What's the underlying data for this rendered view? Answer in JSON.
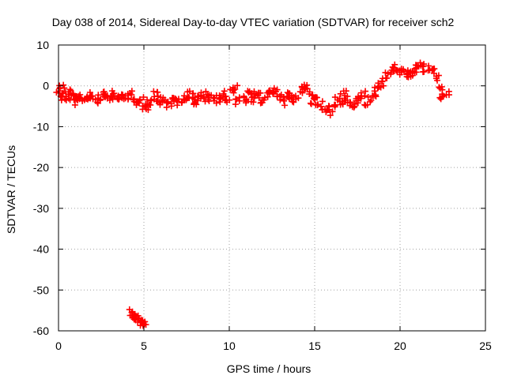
{
  "chart_data": {
    "type": "scatter",
    "title": "Day 038 of 2014, Sidereal Day-to-day VTEC variation (SDTVAR) for receiver sch2",
    "xlabel": "GPS time / hours",
    "ylabel": "SDTVAR / TECUs",
    "xlim": [
      0,
      25
    ],
    "ylim": [
      -60,
      10
    ],
    "xticks": [
      0,
      5,
      10,
      15,
      20,
      25
    ],
    "yticks": [
      10,
      0,
      -10,
      -20,
      -30,
      -40,
      -50,
      -60
    ],
    "grid": true,
    "marker": "+",
    "series": [
      {
        "name": "SDTVAR",
        "color": "#ff0000",
        "x": [
          0.0,
          0.1,
          0.2,
          0.3,
          0.5,
          0.6,
          0.8,
          1.0,
          1.1,
          1.2,
          1.4,
          1.6,
          1.8,
          2.0,
          2.2,
          2.4,
          2.6,
          2.8,
          3.0,
          3.2,
          3.4,
          3.6,
          3.8,
          4.0,
          4.2,
          4.4,
          4.6,
          4.8,
          5.0,
          5.1,
          5.3,
          5.5,
          5.7,
          5.9,
          6.1,
          6.3,
          6.5,
          6.7,
          6.9,
          7.1,
          7.3,
          7.5,
          7.7,
          7.9,
          8.1,
          8.3,
          8.5,
          8.7,
          8.9,
          9.1,
          9.3,
          9.5,
          9.7,
          9.9,
          10.1,
          10.3,
          10.5,
          10.7,
          10.9,
          11.1,
          11.3,
          11.5,
          11.7,
          11.9,
          12.1,
          12.3,
          12.5,
          12.7,
          12.9,
          13.1,
          13.3,
          13.5,
          13.7,
          13.9,
          14.1,
          14.3,
          14.5,
          14.7,
          14.9,
          15.1,
          15.3,
          15.5,
          15.7,
          15.9,
          16.1,
          16.3,
          16.5,
          16.7,
          16.9,
          17.1,
          17.3,
          17.5,
          17.7,
          17.9,
          18.1,
          18.3,
          18.5,
          18.7,
          18.9,
          19.1,
          19.3,
          19.5,
          19.7,
          19.9,
          20.1,
          20.3,
          20.5,
          20.7,
          20.9,
          21.1,
          21.3,
          21.5,
          21.7,
          21.9,
          22.1,
          22.3,
          22.5,
          22.7,
          4.3,
          4.4,
          4.5,
          4.6,
          4.7,
          4.8,
          4.9,
          5.0
        ],
        "y": [
          -1.0,
          -3.0,
          0.0,
          -2.0,
          -3.5,
          -1.5,
          -2.5,
          -4.0,
          -3.0,
          -2.5,
          -3.0,
          -3.0,
          -2.5,
          -2.0,
          -3.5,
          -3.0,
          -2.0,
          -2.5,
          -3.0,
          -2.0,
          -3.0,
          -2.5,
          -2.5,
          -3.0,
          -2.0,
          -3.5,
          -4.0,
          -3.5,
          -4.5,
          -5.5,
          -4.0,
          -3.0,
          -2.0,
          -4.0,
          -3.5,
          -4.0,
          -4.5,
          -3.0,
          -3.5,
          -4.0,
          -3.0,
          -3.0,
          -2.0,
          -3.5,
          -4.0,
          -3.0,
          -2.0,
          -3.5,
          -2.5,
          -3.0,
          -3.5,
          -3.0,
          -2.0,
          -3.5,
          -1.0,
          -0.5,
          -4.0,
          -3.0,
          -3.5,
          -2.0,
          -3.5,
          -2.0,
          -2.5,
          -3.5,
          -3.0,
          -2.0,
          -1.0,
          -1.5,
          -2.0,
          -4.0,
          -3.0,
          -2.0,
          -3.5,
          -2.5,
          -1.0,
          -0.5,
          0.0,
          -2.0,
          -4.0,
          -3.0,
          -4.5,
          -6.0,
          -5.5,
          -6.5,
          -5.0,
          -3.5,
          -4.0,
          -2.0,
          -3.0,
          -4.5,
          -5.0,
          -3.5,
          -3.0,
          -2.0,
          -4.5,
          -3.0,
          -2.0,
          -1.0,
          0.0,
          1.5,
          2.5,
          3.5,
          4.5,
          4.0,
          3.0,
          3.5,
          2.5,
          3.0,
          4.0,
          4.5,
          5.0,
          4.0,
          4.5,
          3.5,
          2.0,
          -0.5,
          -2.5,
          -2.0,
          -55.5,
          -56.0,
          -56.5,
          -57.0,
          -57.3,
          -57.6,
          -58.0,
          -58.3
        ]
      }
    ]
  }
}
